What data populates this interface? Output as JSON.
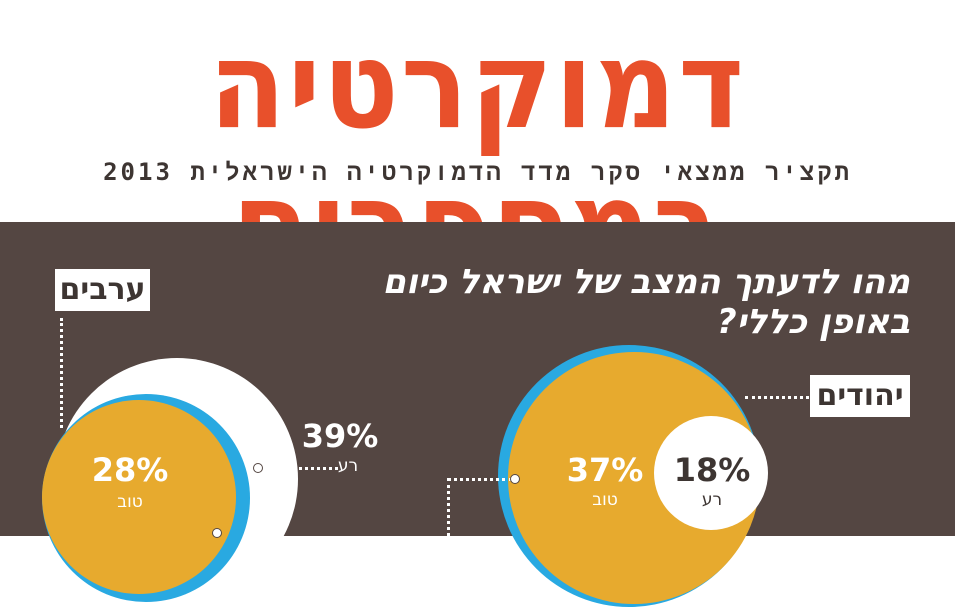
{
  "header": {
    "title": "דמוקרטיה במספרים",
    "subtitle": "תקציר ממצאי סקר מדד הדמוקרטיה הישראלית 2013"
  },
  "panel": {
    "question": "מהו לדעתך המצב של ישראל כיום באופן כללי?",
    "arabs": {
      "tag": "ערבים",
      "bad": {
        "value": "39%",
        "label": "רע"
      },
      "good": {
        "value": "28%",
        "label": "טוב"
      }
    },
    "jews": {
      "tag": "יהודים",
      "good": {
        "value": "37%",
        "label": "טוב"
      },
      "bad": {
        "value": "18%",
        "label": "רע"
      }
    }
  },
  "colors": {
    "title": "#e8502b",
    "background": "#544642",
    "good": "#e7aa2e",
    "blue": "#29a9e1",
    "bad": "#ffffff"
  }
}
